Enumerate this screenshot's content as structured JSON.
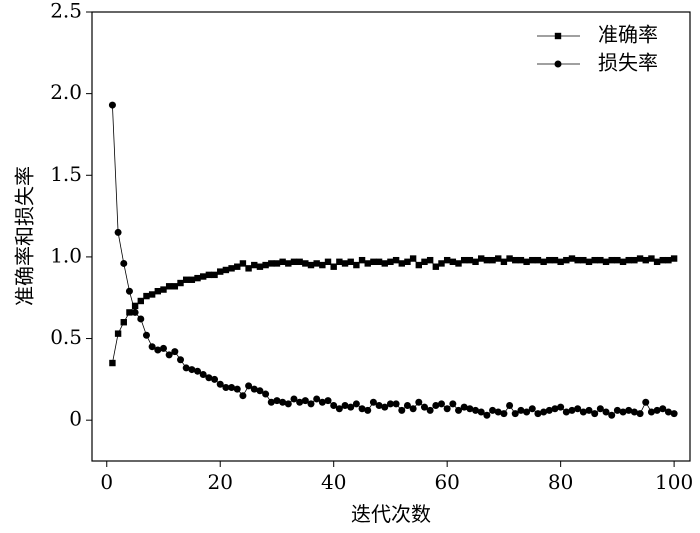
{
  "chart_data": {
    "type": "line",
    "xlabel": "迭代次数",
    "ylabel": "准确率和损失率",
    "x": [
      1,
      2,
      3,
      4,
      5,
      6,
      7,
      8,
      9,
      10,
      11,
      12,
      13,
      14,
      15,
      16,
      17,
      18,
      19,
      20,
      21,
      22,
      23,
      24,
      25,
      26,
      27,
      28,
      29,
      30,
      31,
      32,
      33,
      34,
      35,
      36,
      37,
      38,
      39,
      40,
      41,
      42,
      43,
      44,
      45,
      46,
      47,
      48,
      49,
      50,
      51,
      52,
      53,
      54,
      55,
      56,
      57,
      58,
      59,
      60,
      61,
      62,
      63,
      64,
      65,
      66,
      67,
      68,
      69,
      70,
      71,
      72,
      73,
      74,
      75,
      76,
      77,
      78,
      79,
      80,
      81,
      82,
      83,
      84,
      85,
      86,
      87,
      88,
      89,
      90,
      91,
      92,
      93,
      94,
      95,
      96,
      97,
      98,
      99,
      100
    ],
    "series": [
      {
        "name": "准确率",
        "color": "#000000",
        "marker": "square",
        "values": [
          0.35,
          0.53,
          0.6,
          0.66,
          0.7,
          0.73,
          0.76,
          0.77,
          0.79,
          0.8,
          0.82,
          0.82,
          0.84,
          0.86,
          0.86,
          0.87,
          0.88,
          0.89,
          0.89,
          0.91,
          0.92,
          0.93,
          0.94,
          0.96,
          0.93,
          0.95,
          0.94,
          0.95,
          0.96,
          0.96,
          0.97,
          0.96,
          0.97,
          0.97,
          0.96,
          0.95,
          0.96,
          0.95,
          0.97,
          0.94,
          0.97,
          0.96,
          0.97,
          0.95,
          0.98,
          0.96,
          0.97,
          0.97,
          0.96,
          0.97,
          0.98,
          0.96,
          0.97,
          0.99,
          0.95,
          0.97,
          0.98,
          0.94,
          0.96,
          0.98,
          0.97,
          0.96,
          0.98,
          0.98,
          0.97,
          0.99,
          0.98,
          0.98,
          0.99,
          0.97,
          0.99,
          0.98,
          0.98,
          0.97,
          0.98,
          0.98,
          0.97,
          0.98,
          0.98,
          0.97,
          0.98,
          0.99,
          0.98,
          0.98,
          0.97,
          0.98,
          0.98,
          0.97,
          0.98,
          0.98,
          0.97,
          0.98,
          0.98,
          0.99,
          0.98,
          0.99,
          0.97,
          0.98,
          0.98,
          0.99
        ]
      },
      {
        "name": "损失率",
        "color": "#000000",
        "marker": "circle",
        "values": [
          1.93,
          1.15,
          0.96,
          0.79,
          0.66,
          0.62,
          0.52,
          0.45,
          0.43,
          0.44,
          0.4,
          0.42,
          0.37,
          0.32,
          0.31,
          0.3,
          0.28,
          0.26,
          0.25,
          0.22,
          0.2,
          0.2,
          0.19,
          0.15,
          0.21,
          0.19,
          0.18,
          0.16,
          0.11,
          0.12,
          0.11,
          0.1,
          0.13,
          0.11,
          0.12,
          0.1,
          0.13,
          0.11,
          0.12,
          0.09,
          0.07,
          0.09,
          0.08,
          0.1,
          0.07,
          0.06,
          0.11,
          0.09,
          0.08,
          0.1,
          0.1,
          0.06,
          0.09,
          0.07,
          0.11,
          0.08,
          0.06,
          0.09,
          0.1,
          0.07,
          0.1,
          0.06,
          0.08,
          0.07,
          0.06,
          0.05,
          0.03,
          0.06,
          0.05,
          0.04,
          0.09,
          0.04,
          0.06,
          0.05,
          0.07,
          0.04,
          0.05,
          0.06,
          0.07,
          0.08,
          0.05,
          0.06,
          0.07,
          0.05,
          0.06,
          0.04,
          0.07,
          0.05,
          0.03,
          0.06,
          0.05,
          0.06,
          0.05,
          0.04,
          0.11,
          0.05,
          0.06,
          0.07,
          0.05,
          0.04
        ]
      }
    ],
    "xlim": [
      -2.6,
      102.8
    ],
    "ylim": [
      -0.25,
      2.5
    ],
    "xticks": [
      0,
      20,
      40,
      60,
      80,
      100
    ],
    "yticks": [
      0,
      0.5,
      {
        "value": 1,
        "label": "1.0"
      },
      1.5,
      {
        "value": 2,
        "label": "2.0"
      },
      2.5
    ],
    "legend": "upper right"
  }
}
